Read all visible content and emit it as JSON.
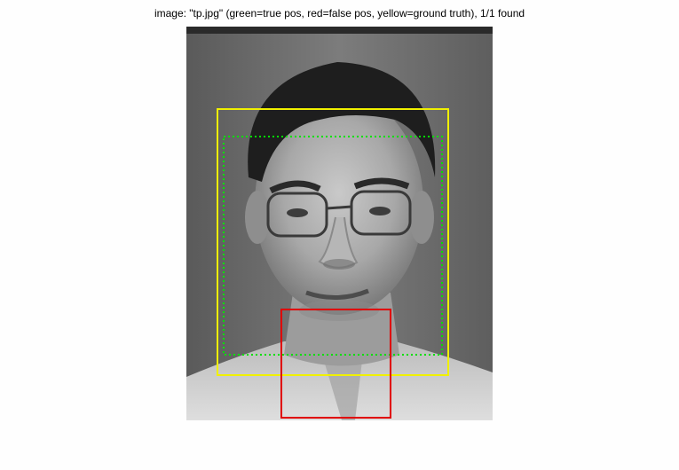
{
  "figure": {
    "title": "image: \"tp.jpg\" (green=true pos, red=false pos, yellow=ground truth), 1/1 found"
  },
  "image": {
    "subject": "grayscale face photograph"
  },
  "legend_colors": {
    "true_positive": "#00e000",
    "false_positive": "#e00000",
    "ground_truth": "#f0f000"
  }
}
